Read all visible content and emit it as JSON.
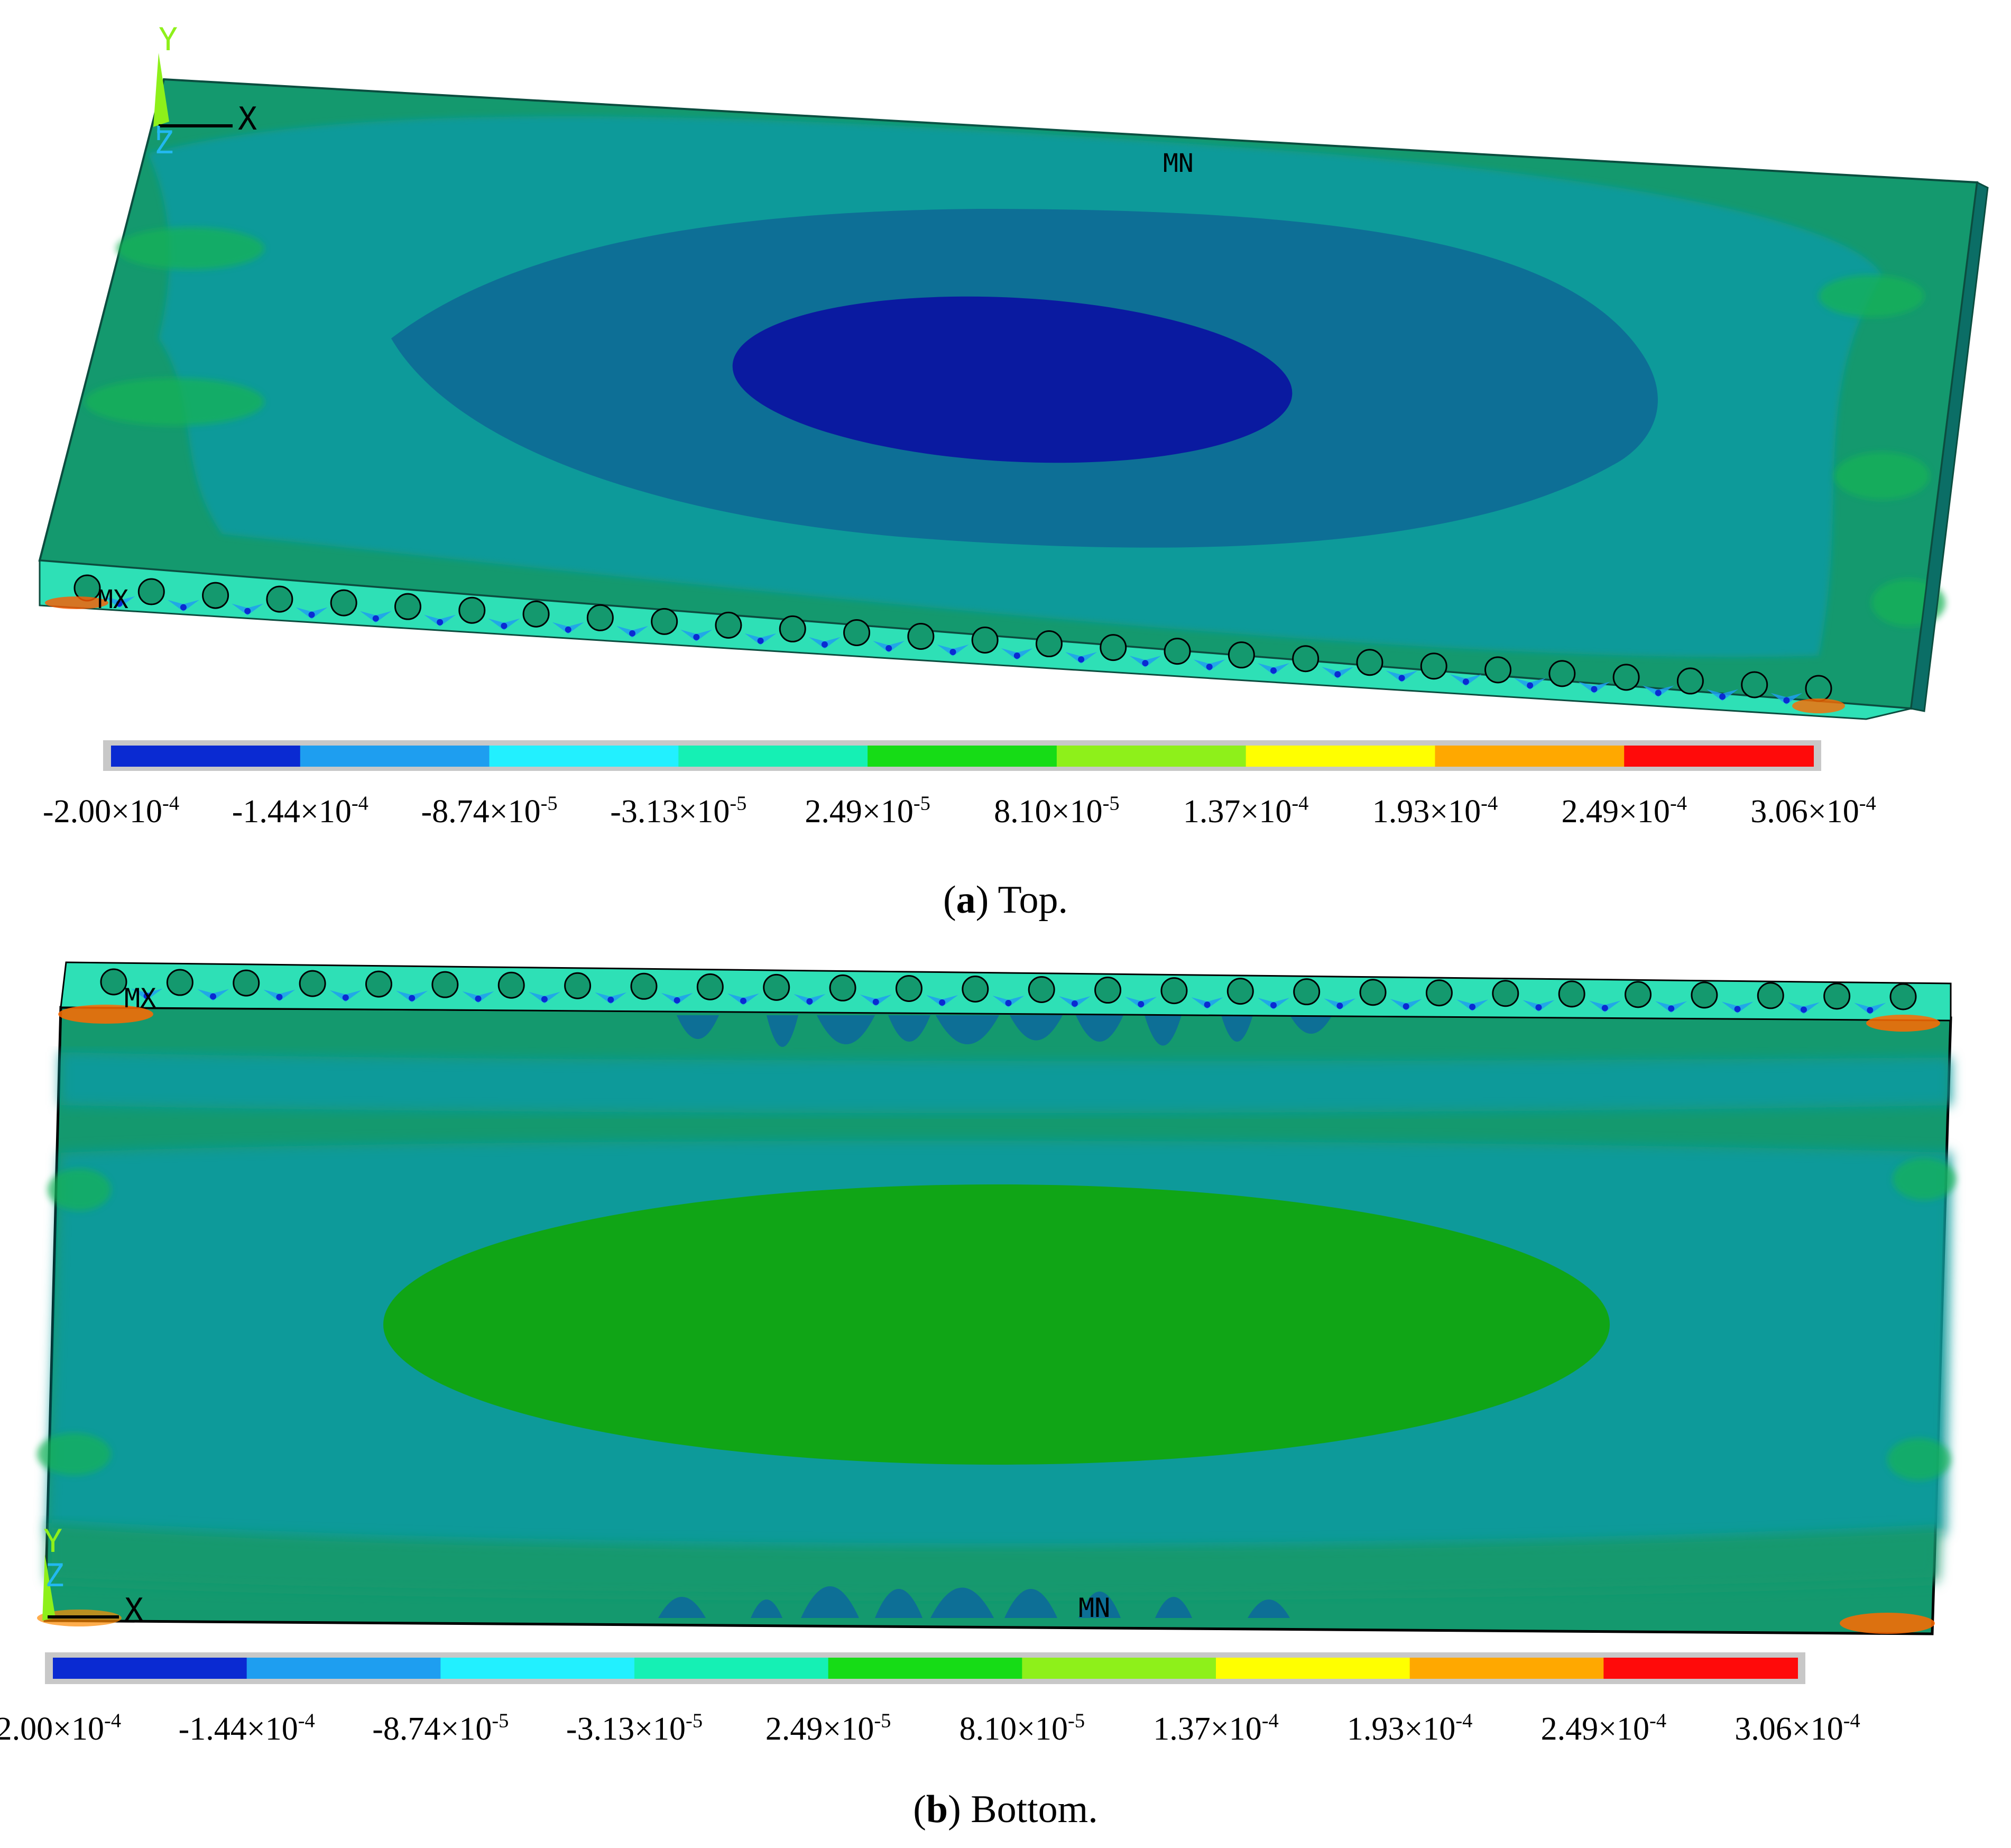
{
  "legend_colors": [
    "#0a2ad2",
    "#1e9ef0",
    "#22f0ff",
    "#15f0b4",
    "#16dc16",
    "#8ef01a",
    "#ffff00",
    "#ffa800",
    "#ff0a0a"
  ],
  "legend_labels": [
    {
      "mant": "-2.00",
      "exp": "-4"
    },
    {
      "mant": "-1.44",
      "exp": "-4"
    },
    {
      "mant": "-8.74",
      "exp": "-5"
    },
    {
      "mant": "-3.13",
      "exp": "-5"
    },
    {
      "mant": "2.49",
      "exp": "-5"
    },
    {
      "mant": "8.10",
      "exp": "-5"
    },
    {
      "mant": "1.37",
      "exp": "-4"
    },
    {
      "mant": "1.93",
      "exp": "-4"
    },
    {
      "mant": "2.49",
      "exp": "-4"
    },
    {
      "mant": "3.06",
      "exp": "-4"
    }
  ],
  "times_sign": "×10",
  "panels": [
    {
      "caption_letter": "a",
      "caption_text": ") Top.",
      "caption_open": "(",
      "axis": {
        "x": "X",
        "y": "Y",
        "z": "Z"
      },
      "marker_min": "MN",
      "marker_max": "MX"
    },
    {
      "caption_letter": "b",
      "caption_text": ") Bottom.",
      "caption_open": "(",
      "axis": {
        "x": "X",
        "y": "Y",
        "z": "Z"
      },
      "marker_min": "MN",
      "marker_max": "MX"
    }
  ],
  "field_colors": {
    "teal_green": "#14996e",
    "teal": "#0f9a9a",
    "mid_blue": "#0d6f96",
    "deep_blue": "#0a1aa0",
    "green": "#10a516",
    "edge_dark": "#0b6e66"
  }
}
